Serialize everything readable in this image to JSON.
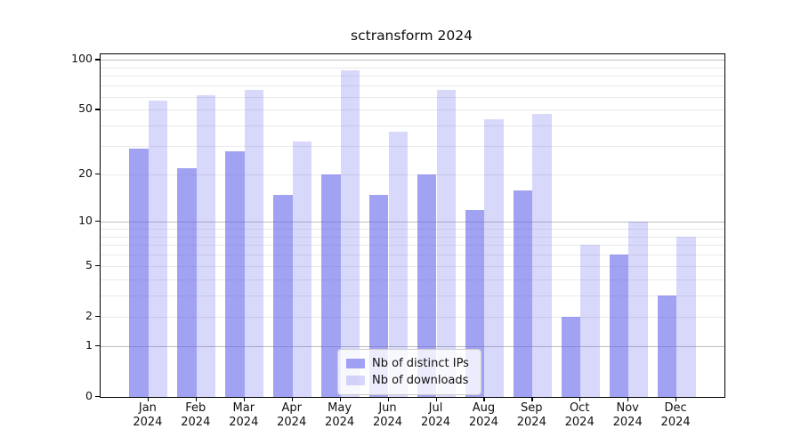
{
  "chart_data": {
    "type": "bar",
    "title": "sctransform 2024",
    "categories": [
      "Jan",
      "Feb",
      "Mar",
      "Apr",
      "May",
      "Jun",
      "Jul",
      "Aug",
      "Sep",
      "Oct",
      "Nov",
      "Dec"
    ],
    "year": "2024",
    "series": [
      {
        "name": "Nb of distinct IPs",
        "color": "#6464eb",
        "alpha": 0.6,
        "values": [
          29,
          22,
          28,
          15,
          20,
          15,
          20,
          12,
          16,
          2,
          6,
          3
        ]
      },
      {
        "name": "Nb of downloads",
        "color": "#6464eb",
        "alpha": 0.25,
        "values": [
          57,
          61,
          66,
          32,
          87,
          37,
          66,
          44,
          47,
          7,
          10,
          8
        ]
      }
    ],
    "xlabel": "",
    "ylabel": "",
    "yscale": "log1p",
    "ylim": [
      0,
      108
    ],
    "yticks": [
      0,
      1,
      2,
      5,
      10,
      20,
      50,
      100
    ],
    "major_gridlines": [
      1,
      10,
      100
    ],
    "minor_gridlines": [
      2,
      3,
      4,
      5,
      6,
      7,
      8,
      9,
      20,
      30,
      40,
      50,
      60,
      70,
      80,
      90
    ],
    "grid_color_major": "#bdbdbd",
    "grid_color_minor": "#e9e9e9",
    "legend_position": "lower center"
  }
}
